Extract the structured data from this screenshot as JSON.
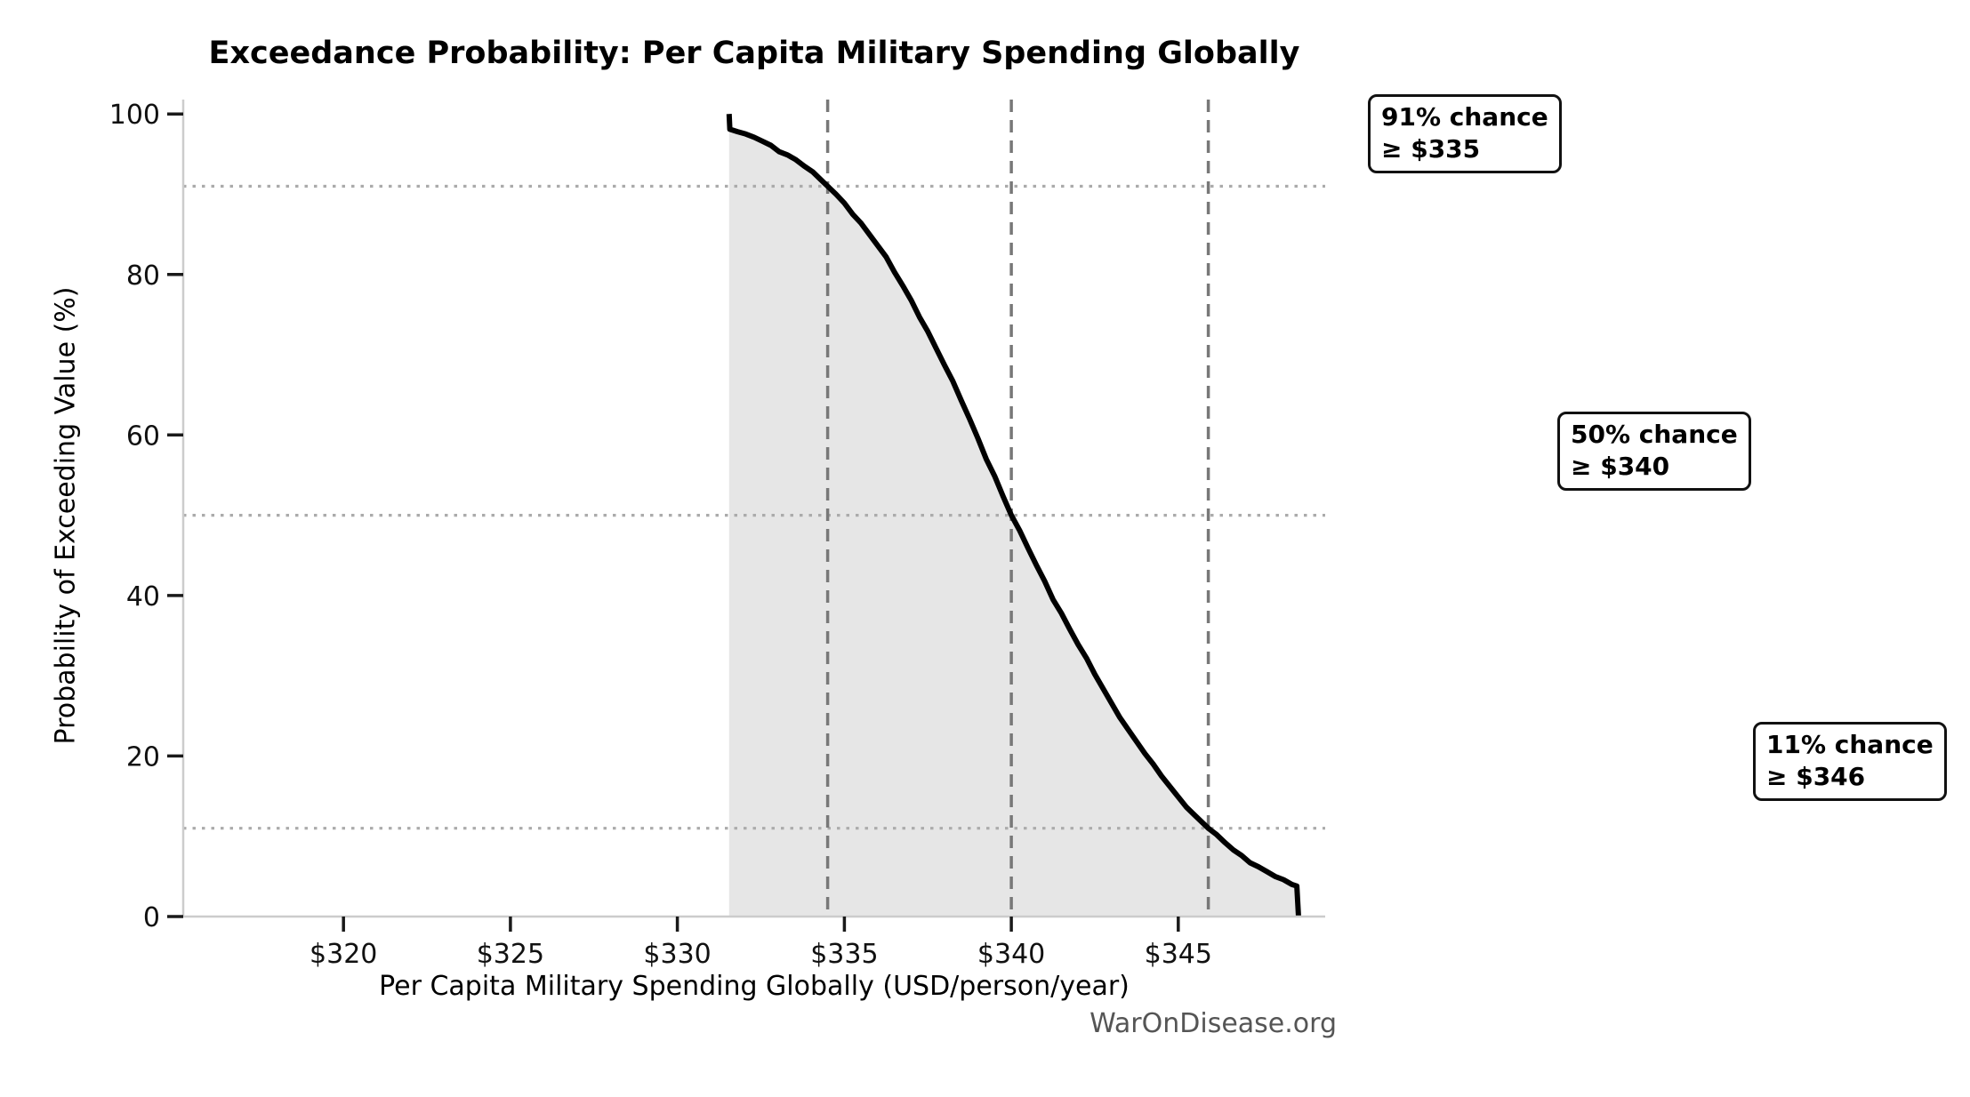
{
  "chart_data": {
    "type": "area",
    "title": "Exceedance Probability: Per Capita Military Spending Globally",
    "xlabel": "Per Capita Military Spending Globally (USD/person/year)",
    "ylabel": "Probability of Exceeding Value (%)",
    "watermark": "WarOnDisease.org",
    "xlim": [
      315.2,
      349.4
    ],
    "ylim": [
      0,
      101.8
    ],
    "grid": "dotted horizontal reference lines at annotation probabilities; dashed vertical reference lines at annotation values; legend none",
    "xticks": {
      "values": [
        320,
        325,
        330,
        335,
        340,
        345
      ],
      "labels": [
        "$320",
        "$325",
        "$330",
        "$335",
        "$340",
        "$345"
      ]
    },
    "yticks": {
      "values": [
        0,
        20,
        40,
        60,
        80,
        100
      ],
      "labels": [
        "0",
        "20",
        "40",
        "60",
        "80",
        "100"
      ]
    },
    "series": [
      {
        "name": "exceedance-probability-ccdf",
        "points": [
          [
            331.55,
            100
          ],
          [
            331.57,
            98.1
          ],
          [
            331.8,
            97.8
          ],
          [
            332.05,
            97.5
          ],
          [
            332.3,
            97.1
          ],
          [
            332.55,
            96.6
          ],
          [
            332.8,
            96.1
          ],
          [
            333.05,
            95.3
          ],
          [
            333.3,
            94.9
          ],
          [
            333.55,
            94.3
          ],
          [
            333.8,
            93.5
          ],
          [
            334.05,
            92.8
          ],
          [
            334.3,
            91.8
          ],
          [
            334.5,
            91.0
          ],
          [
            334.75,
            90.0
          ],
          [
            335.0,
            88.9
          ],
          [
            335.25,
            87.5
          ],
          [
            335.5,
            86.4
          ],
          [
            335.75,
            85.0
          ],
          [
            336.0,
            83.6
          ],
          [
            336.25,
            82.2
          ],
          [
            336.5,
            80.3
          ],
          [
            336.75,
            78.6
          ],
          [
            337.0,
            76.8
          ],
          [
            337.25,
            74.7
          ],
          [
            337.5,
            72.9
          ],
          [
            337.75,
            70.8
          ],
          [
            338.0,
            68.7
          ],
          [
            338.25,
            66.7
          ],
          [
            338.5,
            64.3
          ],
          [
            338.75,
            62.0
          ],
          [
            339.0,
            59.6
          ],
          [
            339.25,
            57.0
          ],
          [
            339.5,
            54.9
          ],
          [
            339.75,
            52.4
          ],
          [
            340.0,
            50.0
          ],
          [
            340.25,
            48.1
          ],
          [
            340.5,
            45.9
          ],
          [
            340.75,
            43.8
          ],
          [
            341.0,
            41.8
          ],
          [
            341.25,
            39.5
          ],
          [
            341.5,
            37.8
          ],
          [
            341.75,
            35.8
          ],
          [
            342.0,
            33.9
          ],
          [
            342.25,
            32.2
          ],
          [
            342.5,
            30.2
          ],
          [
            342.75,
            28.4
          ],
          [
            343.0,
            26.6
          ],
          [
            343.25,
            24.8
          ],
          [
            343.5,
            23.3
          ],
          [
            343.75,
            21.8
          ],
          [
            344.0,
            20.3
          ],
          [
            344.25,
            19.0
          ],
          [
            344.5,
            17.5
          ],
          [
            344.75,
            16.2
          ],
          [
            345.0,
            14.9
          ],
          [
            345.25,
            13.6
          ],
          [
            345.5,
            12.6
          ],
          [
            345.75,
            11.6
          ],
          [
            345.9,
            11.0
          ],
          [
            346.15,
            10.2
          ],
          [
            346.4,
            9.2
          ],
          [
            346.65,
            8.3
          ],
          [
            346.9,
            7.6
          ],
          [
            347.15,
            6.7
          ],
          [
            347.4,
            6.2
          ],
          [
            347.65,
            5.6
          ],
          [
            347.9,
            5.0
          ],
          [
            348.15,
            4.6
          ],
          [
            348.4,
            4.0
          ],
          [
            348.55,
            3.8
          ],
          [
            348.6,
            0
          ]
        ]
      }
    ],
    "annotations": [
      {
        "prob": 91,
        "vline_x": 334.5,
        "lines": [
          "91% chance",
          "≥ $335"
        ]
      },
      {
        "prob": 50,
        "vline_x": 340.0,
        "lines": [
          "50% chance",
          "≥ $340"
        ]
      },
      {
        "prob": 11,
        "vline_x": 345.9,
        "lines": [
          "11% chance",
          "≥ $346"
        ]
      }
    ],
    "colors": {
      "curve": "#000000",
      "fill": "#e6e6e6",
      "dashed_line": "#787878",
      "dotted_line": "#ababab",
      "spine": "#cccccc",
      "tick": "#1a1a1a",
      "text": "#000000",
      "watermark": "#555555",
      "background": "#ffffff"
    }
  }
}
